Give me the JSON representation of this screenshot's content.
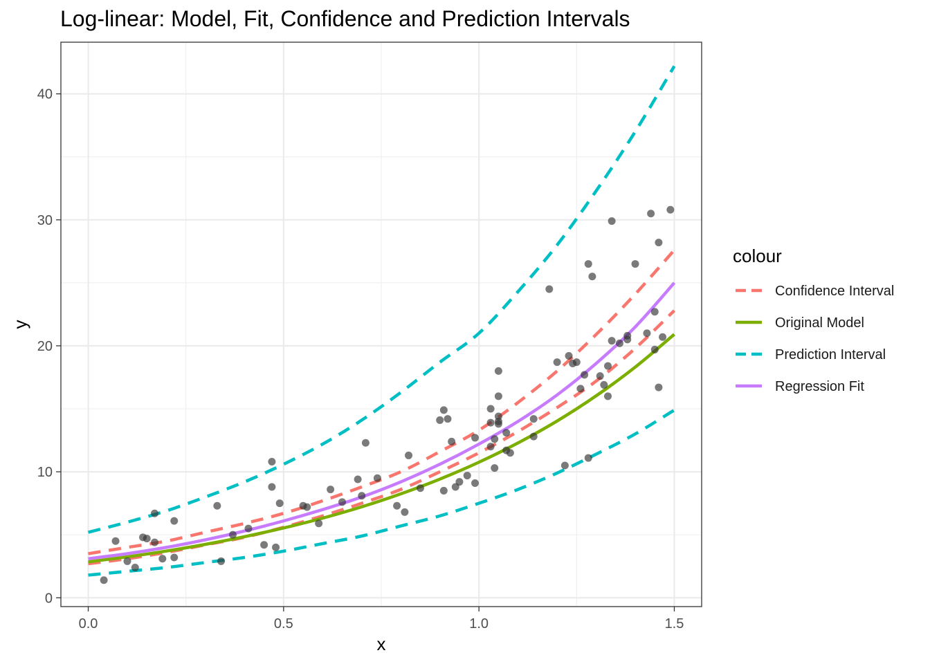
{
  "chart_data": {
    "type": "scatter",
    "title": "Log-linear: Model, Fit, Confidence and Prediction Intervals",
    "xlabel": "x",
    "ylabel": "y",
    "xlim": [
      -0.07,
      1.57
    ],
    "ylim": [
      -0.7,
      44.1
    ],
    "x_ticks": [
      0.0,
      0.5,
      1.0,
      1.5
    ],
    "x_tick_labels": [
      "0.0",
      "0.5",
      "1.0",
      "1.5"
    ],
    "y_ticks": [
      0,
      10,
      20,
      30,
      40
    ],
    "y_tick_labels": [
      "0",
      "10",
      "20",
      "30",
      "40"
    ],
    "grid": true,
    "legend": {
      "title": "colour",
      "placement": "right",
      "entries": [
        {
          "label": "Confidence Interval",
          "color": "#F8766D",
          "dashed": true
        },
        {
          "label": "Original Model",
          "color": "#7CAE00",
          "dashed": false
        },
        {
          "label": "Prediction Interval",
          "color": "#00BFC4",
          "dashed": true
        },
        {
          "label": "Regression Fit",
          "color": "#C77CFF",
          "dashed": false
        }
      ]
    },
    "points": {
      "color": "#333333",
      "x": [
        0.04,
        0.07,
        0.1,
        0.12,
        0.14,
        0.15,
        0.17,
        0.17,
        0.19,
        0.22,
        0.22,
        0.33,
        0.34,
        0.37,
        0.41,
        0.45,
        0.47,
        0.47,
        0.48,
        0.49,
        0.55,
        0.56,
        0.59,
        0.62,
        0.65,
        0.69,
        0.7,
        0.71,
        0.74,
        0.79,
        0.81,
        0.82,
        0.85,
        0.9,
        0.91,
        0.91,
        0.92,
        0.93,
        0.94,
        0.95,
        0.97,
        0.99,
        0.99,
        1.03,
        1.03,
        1.03,
        1.04,
        1.04,
        1.05,
        1.05,
        1.05,
        1.05,
        1.05,
        1.07,
        1.07,
        1.08,
        1.14,
        1.14,
        1.18,
        1.2,
        1.22,
        1.23,
        1.24,
        1.25,
        1.26,
        1.27,
        1.28,
        1.28,
        1.29,
        1.31,
        1.32,
        1.33,
        1.33,
        1.34,
        1.34,
        1.36,
        1.38,
        1.38,
        1.4,
        1.43,
        1.44,
        1.45,
        1.45,
        1.46,
        1.46,
        1.47,
        1.49
      ],
      "y": [
        1.4,
        4.5,
        2.9,
        2.4,
        4.8,
        4.7,
        4.4,
        6.7,
        3.1,
        6.1,
        3.2,
        7.3,
        2.9,
        5.0,
        5.5,
        4.2,
        8.8,
        10.8,
        4.0,
        7.5,
        7.3,
        7.2,
        5.9,
        8.6,
        7.6,
        9.4,
        8.1,
        12.3,
        9.5,
        7.3,
        6.8,
        11.3,
        8.7,
        14.1,
        14.9,
        8.5,
        14.2,
        12.4,
        8.8,
        9.2,
        9.7,
        9.1,
        12.7,
        12.0,
        15.0,
        13.9,
        10.3,
        12.6,
        13.8,
        14.0,
        14.4,
        16.0,
        18.0,
        13.1,
        11.7,
        11.5,
        14.2,
        12.8,
        24.5,
        18.7,
        10.5,
        19.2,
        18.6,
        18.7,
        16.6,
        17.7,
        26.5,
        11.1,
        25.5,
        17.6,
        16.9,
        18.4,
        16.0,
        20.4,
        29.9,
        20.2,
        20.5,
        20.8,
        26.5,
        21.0,
        30.5,
        22.7,
        19.7,
        16.7,
        28.2,
        20.7,
        30.8
      ]
    },
    "series": [
      {
        "name": "Confidence Interval",
        "color": "#F8766D",
        "dashed": true,
        "x": [
          0.0,
          0.1,
          0.2,
          0.3,
          0.4,
          0.5,
          0.6,
          0.7,
          0.8,
          0.9,
          1.0,
          1.1,
          1.2,
          1.3,
          1.4,
          1.5
        ],
        "y": [
          3.5,
          4.0,
          4.5,
          5.2,
          5.9,
          6.7,
          7.7,
          8.8,
          10.0,
          11.6,
          13.3,
          15.5,
          18.0,
          20.9,
          24.1,
          27.6
        ]
      },
      {
        "name": "Confidence Interval",
        "color": "#F8766D",
        "dashed": true,
        "x": [
          0.0,
          0.1,
          0.2,
          0.3,
          0.4,
          0.5,
          0.6,
          0.7,
          0.8,
          0.9,
          1.0,
          1.1,
          1.2,
          1.3,
          1.4,
          1.5
        ],
        "y": [
          2.7,
          3.1,
          3.6,
          4.2,
          4.8,
          5.6,
          6.5,
          7.5,
          8.6,
          10.0,
          11.5,
          13.2,
          15.1,
          17.2,
          19.8,
          22.8
        ]
      },
      {
        "name": "Original Model",
        "color": "#7CAE00",
        "dashed": false,
        "x": [
          0.0,
          0.1,
          0.2,
          0.3,
          0.4,
          0.5,
          0.6,
          0.7,
          0.8,
          0.9,
          1.0,
          1.1,
          1.2,
          1.3,
          1.4,
          1.5
        ],
        "y": [
          2.85,
          3.25,
          3.71,
          4.24,
          4.85,
          5.54,
          6.32,
          7.22,
          8.25,
          9.42,
          10.76,
          12.29,
          14.03,
          16.03,
          18.31,
          20.91
        ]
      },
      {
        "name": "Prediction Interval",
        "color": "#00BFC4",
        "dashed": true,
        "x": [
          0.0,
          0.1,
          0.2,
          0.3,
          0.4,
          0.5,
          0.6,
          0.7,
          0.8,
          0.9,
          1.0,
          1.1,
          1.2,
          1.3,
          1.4,
          1.5
        ],
        "y": [
          5.2,
          6.0,
          6.9,
          8.0,
          9.2,
          10.6,
          12.2,
          14.1,
          16.3,
          18.7,
          21.0,
          24.3,
          28.0,
          32.3,
          37.0,
          42.2
        ]
      },
      {
        "name": "Prediction Interval",
        "color": "#00BFC4",
        "dashed": true,
        "x": [
          0.0,
          0.1,
          0.2,
          0.3,
          0.4,
          0.5,
          0.6,
          0.7,
          0.8,
          0.9,
          1.0,
          1.1,
          1.2,
          1.3,
          1.4,
          1.5
        ],
        "y": [
          1.8,
          2.1,
          2.4,
          2.8,
          3.2,
          3.7,
          4.3,
          4.9,
          5.7,
          6.5,
          7.5,
          8.6,
          9.9,
          11.4,
          13.0,
          14.9
        ]
      },
      {
        "name": "Regression Fit",
        "color": "#C77CFF",
        "dashed": false,
        "x": [
          0.0,
          0.1,
          0.2,
          0.3,
          0.4,
          0.5,
          0.6,
          0.7,
          0.8,
          0.9,
          1.0,
          1.1,
          1.2,
          1.3,
          1.4,
          1.5
        ],
        "y": [
          3.1,
          3.5,
          4.0,
          4.6,
          5.3,
          6.1,
          7.0,
          8.0,
          9.2,
          10.6,
          12.2,
          14.0,
          16.1,
          18.6,
          21.5,
          25.0
        ]
      }
    ]
  }
}
